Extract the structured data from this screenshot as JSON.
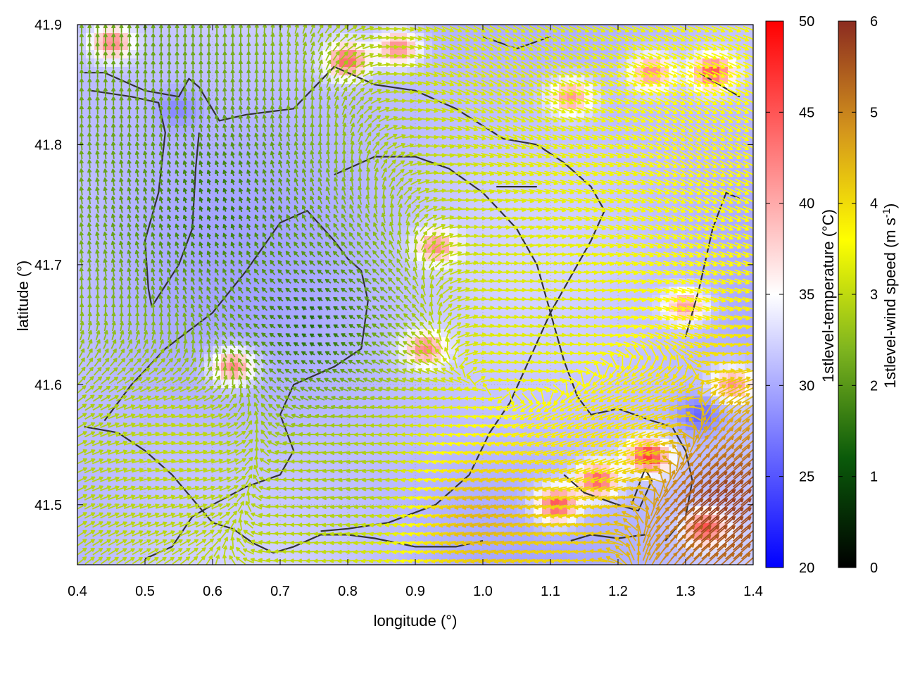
{
  "chart_data": {
    "type": "heatmap",
    "title": "",
    "xlabel": "longitude (°)",
    "ylabel": "latitude (°)",
    "xlim": [
      0.4,
      1.4
    ],
    "ylim": [
      41.45,
      41.9
    ],
    "x_ticks": [
      "0.4",
      "0.5",
      "0.6",
      "0.7",
      "0.8",
      "0.9",
      "1.0",
      "1.1",
      "1.2",
      "1.3",
      "1.4"
    ],
    "y_ticks": [
      "41.5",
      "41.6",
      "41.7",
      "41.8",
      "41.9"
    ],
    "grid": true,
    "temperature_colorbar": {
      "label": "1stlevel-temperature (°C)",
      "range": [
        20,
        50
      ],
      "ticks": [
        "20",
        "25",
        "30",
        "35",
        "40",
        "45",
        "50"
      ],
      "colors": [
        "#0000ff",
        "#ffffff",
        "#ff0000"
      ]
    },
    "wind_colorbar": {
      "label_main": "1stlevel-wind speed (m s",
      "label_sup": "-1",
      "label_end": ")",
      "range": [
        0,
        6
      ],
      "ticks": [
        "0",
        "1",
        "2",
        "3",
        "4",
        "5",
        "6"
      ],
      "colors": [
        "#000000",
        "#0a5a0a",
        "#7fb51f",
        "#ffff00",
        "#d4951c",
        "#8b2b20"
      ]
    },
    "base_temperature": 31,
    "hot_spots": [
      {
        "x": 0.63,
        "y": 41.615,
        "temp": 43
      },
      {
        "x": 0.915,
        "y": 41.63,
        "temp": 42
      },
      {
        "x": 0.93,
        "y": 41.715,
        "temp": 41
      },
      {
        "x": 0.45,
        "y": 41.885,
        "temp": 42
      },
      {
        "x": 0.8,
        "y": 41.87,
        "temp": 44
      },
      {
        "x": 0.875,
        "y": 41.88,
        "temp": 42
      },
      {
        "x": 1.13,
        "y": 41.84,
        "temp": 41
      },
      {
        "x": 1.25,
        "y": 41.86,
        "temp": 42
      },
      {
        "x": 1.34,
        "y": 41.86,
        "temp": 45
      },
      {
        "x": 1.245,
        "y": 41.54,
        "temp": 47
      },
      {
        "x": 1.17,
        "y": 41.52,
        "temp": 45
      },
      {
        "x": 1.11,
        "y": 41.5,
        "temp": 46
      },
      {
        "x": 1.33,
        "y": 41.48,
        "temp": 45
      },
      {
        "x": 1.37,
        "y": 41.6,
        "temp": 42
      },
      {
        "x": 1.3,
        "y": 41.665,
        "temp": 41
      }
    ],
    "cold_spots": [
      {
        "x": 1.32,
        "y": 41.575,
        "temp": 26
      },
      {
        "x": 0.55,
        "y": 41.83,
        "temp": 28
      }
    ],
    "wind_zones": [
      {
        "x": 0.5,
        "y": 41.86,
        "speed": 1.5,
        "dir": 90
      },
      {
        "x": 0.6,
        "y": 41.75,
        "speed": 0.8,
        "dir": 110
      },
      {
        "x": 0.75,
        "y": 41.65,
        "speed": 0.6,
        "dir": 150
      },
      {
        "x": 0.55,
        "y": 41.55,
        "speed": 2.5,
        "dir": 10
      },
      {
        "x": 0.8,
        "y": 41.52,
        "speed": 2.2,
        "dir": 190
      },
      {
        "x": 1.1,
        "y": 41.65,
        "speed": 2.8,
        "dir": 5
      },
      {
        "x": 1.2,
        "y": 41.78,
        "speed": 3.0,
        "dir": 345
      },
      {
        "x": 1.05,
        "y": 41.88,
        "speed": 2.8,
        "dir": 330
      },
      {
        "x": 1.3,
        "y": 41.8,
        "speed": 3.3,
        "dir": 330
      },
      {
        "x": 1.35,
        "y": 41.5,
        "speed": 5.8,
        "dir": 40
      },
      {
        "x": 1.0,
        "y": 41.49,
        "speed": 4.2,
        "dir": 190
      },
      {
        "x": 1.2,
        "y": 41.56,
        "speed": 3.5,
        "dir": 200
      }
    ],
    "contours": [
      [
        [
          0.41,
          41.86
        ],
        [
          0.44,
          41.86
        ],
        [
          0.5,
          41.845
        ],
        [
          0.55,
          41.84
        ],
        [
          0.565,
          41.855
        ],
        [
          0.58,
          41.848
        ],
        [
          0.61,
          41.82
        ],
        [
          0.65,
          41.825
        ],
        [
          0.72,
          41.83
        ],
        [
          0.78,
          41.865
        ],
        [
          0.84,
          41.85
        ],
        [
          0.9,
          41.845
        ],
        [
          0.96,
          41.83
        ],
        [
          1.03,
          41.805
        ],
        [
          1.08,
          41.8
        ],
        [
          1.12,
          41.785
        ],
        [
          1.16,
          41.765
        ],
        [
          1.18,
          41.745
        ],
        [
          1.16,
          41.72
        ],
        [
          1.14,
          41.7
        ],
        [
          1.1,
          41.66
        ],
        [
          1.06,
          41.61
        ],
        [
          1.04,
          41.585
        ],
        [
          1.01,
          41.56
        ],
        [
          0.98,
          41.525
        ],
        [
          0.93,
          41.5
        ],
        [
          0.86,
          41.485
        ],
        [
          0.8,
          41.48
        ],
        [
          0.76,
          41.478
        ]
      ],
      [
        [
          0.42,
          41.845
        ],
        [
          0.48,
          41.84
        ],
        [
          0.52,
          41.835
        ],
        [
          0.53,
          41.81
        ],
        [
          0.52,
          41.76
        ],
        [
          0.5,
          41.72
        ],
        [
          0.505,
          41.68
        ],
        [
          0.51,
          41.665
        ],
        [
          0.55,
          41.7
        ],
        [
          0.57,
          41.73
        ],
        [
          0.575,
          41.78
        ],
        [
          0.58,
          41.81
        ]
      ],
      [
        [
          0.44,
          41.57
        ],
        [
          0.48,
          41.6
        ],
        [
          0.53,
          41.63
        ],
        [
          0.6,
          41.66
        ],
        [
          0.65,
          41.695
        ],
        [
          0.7,
          41.735
        ],
        [
          0.74,
          41.745
        ],
        [
          0.78,
          41.72
        ],
        [
          0.8,
          41.705
        ],
        [
          0.82,
          41.695
        ],
        [
          0.83,
          41.67
        ],
        [
          0.82,
          41.63
        ],
        [
          0.78,
          41.615
        ],
        [
          0.72,
          41.6
        ],
        [
          0.7,
          41.575
        ],
        [
          0.72,
          41.545
        ],
        [
          0.7,
          41.525
        ],
        [
          0.65,
          41.515
        ],
        [
          0.6,
          41.5
        ],
        [
          0.57,
          41.49
        ],
        [
          0.54,
          41.465
        ],
        [
          0.5,
          41.455
        ]
      ],
      [
        [
          0.41,
          41.565
        ],
        [
          0.46,
          41.56
        ],
        [
          0.5,
          41.545
        ],
        [
          0.54,
          41.525
        ],
        [
          0.57,
          41.505
        ],
        [
          0.6,
          41.485
        ],
        [
          0.63,
          41.48
        ],
        [
          0.66,
          41.468
        ],
        [
          0.69,
          41.46
        ],
        [
          0.72,
          41.465
        ],
        [
          0.76,
          41.475
        ],
        [
          0.8,
          41.475
        ],
        [
          0.84,
          41.472
        ],
        [
          0.9,
          41.465
        ],
        [
          0.96,
          41.465
        ],
        [
          1.0,
          41.47
        ]
      ],
      [
        [
          0.78,
          41.775
        ],
        [
          0.84,
          41.79
        ],
        [
          0.9,
          41.79
        ],
        [
          0.95,
          41.78
        ],
        [
          1.0,
          41.76
        ],
        [
          1.05,
          41.73
        ],
        [
          1.08,
          41.7
        ],
        [
          1.1,
          41.66
        ],
        [
          1.12,
          41.62
        ],
        [
          1.14,
          41.59
        ],
        [
          1.16,
          41.575
        ],
        [
          1.2,
          41.58
        ],
        [
          1.25,
          41.57
        ],
        [
          1.28,
          41.565
        ],
        [
          1.3,
          41.545
        ],
        [
          1.31,
          41.52
        ],
        [
          1.3,
          41.49
        ],
        [
          1.27,
          41.47
        ]
      ],
      [
        [
          1.02,
          41.765
        ],
        [
          1.06,
          41.765
        ],
        [
          1.08,
          41.765
        ]
      ],
      [
        [
          1.12,
          41.525
        ],
        [
          1.15,
          41.51
        ],
        [
          1.2,
          41.5
        ],
        [
          1.23,
          41.495
        ],
        [
          1.25,
          41.52
        ],
        [
          1.24,
          41.53
        ],
        [
          1.22,
          41.5
        ]
      ],
      [
        [
          1.3,
          41.64
        ],
        [
          1.32,
          41.68
        ],
        [
          1.34,
          41.73
        ],
        [
          1.36,
          41.76
        ],
        [
          1.38,
          41.755
        ]
      ],
      [
        [
          1.0,
          41.89
        ],
        [
          1.05,
          41.88
        ],
        [
          1.1,
          41.89
        ]
      ],
      [
        [
          1.32,
          41.86
        ],
        [
          1.35,
          41.85
        ],
        [
          1.38,
          41.84
        ]
      ],
      [
        [
          1.13,
          41.47
        ],
        [
          1.16,
          41.475
        ],
        [
          1.2,
          41.472
        ],
        [
          1.24,
          41.475
        ]
      ]
    ]
  }
}
